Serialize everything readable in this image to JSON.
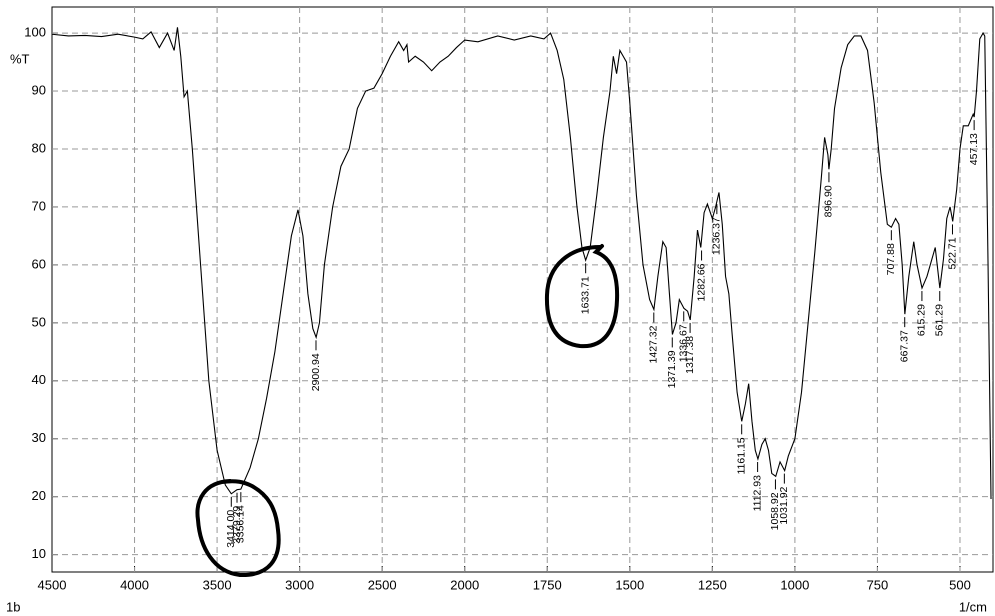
{
  "chart_data": {
    "type": "line",
    "y_label": "%T",
    "x_label": "1/cm",
    "sample": "1b",
    "color": "#000000",
    "xlim": [
      4500,
      400
    ],
    "x_scale_break": 2000,
    "ylim": [
      7,
      104.5
    ],
    "xticks": [
      4500,
      4000,
      3500,
      3000,
      2500,
      2000,
      1750,
      1500,
      1250,
      1000,
      750,
      500
    ],
    "yticks": [
      10,
      20,
      30,
      40,
      50,
      60,
      70,
      80,
      90,
      100
    ],
    "grid": true,
    "x": [
      4500,
      4400,
      4300,
      4200,
      4100,
      4000,
      3950,
      3900,
      3850,
      3800,
      3760,
      3740,
      3720,
      3700,
      3680,
      3650,
      3600,
      3550,
      3500,
      3450,
      3414,
      3379,
      3356,
      3300,
      3250,
      3200,
      3150,
      3100,
      3050,
      3010,
      2980,
      2950,
      2920,
      2900,
      2880,
      2850,
      2800,
      2750,
      2700,
      2650,
      2600,
      2550,
      2500,
      2450,
      2400,
      2370,
      2350,
      2340,
      2300,
      2250,
      2200,
      2150,
      2100,
      2050,
      2000,
      1960,
      1900,
      1850,
      1800,
      1760,
      1740,
      1720,
      1700,
      1680,
      1660,
      1645,
      1633.71,
      1620,
      1600,
      1580,
      1560,
      1550,
      1540,
      1530,
      1520,
      1510,
      1500,
      1480,
      1460,
      1440,
      1427,
      1415,
      1400,
      1390,
      1380,
      1371,
      1360,
      1350,
      1336,
      1325,
      1317,
      1305,
      1295,
      1285,
      1275,
      1265,
      1250,
      1240,
      1230,
      1220,
      1210,
      1200,
      1190,
      1175,
      1161,
      1150,
      1140,
      1130,
      1120,
      1112,
      1100,
      1090,
      1080,
      1070,
      1058,
      1045,
      1031,
      1020,
      1000,
      980,
      960,
      940,
      920,
      910,
      900,
      897,
      890,
      880,
      860,
      840,
      820,
      800,
      780,
      760,
      740,
      720,
      707.88,
      695,
      685,
      675,
      667,
      655,
      640,
      630,
      615,
      600,
      585,
      575,
      561,
      550,
      540,
      530,
      522,
      510,
      500,
      490,
      475,
      460,
      457,
      450,
      440,
      430,
      425,
      415,
      406
    ],
    "values": [
      99.8,
      99.5,
      99.6,
      99.4,
      99.8,
      99.3,
      99,
      100.2,
      97.5,
      100,
      97,
      101,
      96,
      89,
      90,
      80,
      60,
      40,
      28,
      22,
      20.5,
      21.2,
      21.3,
      25,
      30,
      37,
      45,
      55,
      65,
      69.5,
      65,
      55,
      49,
      47.5,
      50,
      60,
      70,
      77,
      80,
      87,
      90,
      90.5,
      93,
      96,
      98.5,
      97,
      98,
      95,
      96,
      95,
      93.5,
      95,
      96,
      97.5,
      98.8,
      98.5,
      99.5,
      98.8,
      99.5,
      99,
      100,
      97,
      92,
      82,
      70,
      63,
      60.8,
      63,
      72,
      82,
      90,
      96,
      93,
      97,
      96,
      95,
      88,
      72,
      60,
      54,
      52.3,
      58,
      64,
      63,
      55,
      48,
      50,
      54,
      52.5,
      52,
      50.5,
      58,
      66,
      63,
      69,
      70.5,
      68,
      70,
      72.5,
      67,
      58,
      55,
      48,
      38,
      33,
      36,
      39.5,
      33,
      28,
      26.5,
      29,
      30,
      28,
      24,
      23.5,
      26,
      24.5,
      27,
      30,
      38,
      50,
      62,
      75,
      82,
      79,
      76.5,
      80,
      87,
      94,
      98,
      99.5,
      99.5,
      97,
      88,
      76,
      67,
      66.5,
      68,
      67,
      60,
      51.5,
      58,
      64,
      60,
      56,
      58,
      61,
      63,
      56,
      61,
      68,
      70,
      67.5,
      73,
      80,
      84,
      84,
      86,
      85.5,
      90,
      99,
      100,
      99.5,
      60,
      19.6
    ],
    "peaks": [
      {
        "x": 3414.0,
        "label": "3414.00",
        "t": 20.5
      },
      {
        "x": 3379.29,
        "label": "3379.29",
        "t": 21.2
      },
      {
        "x": 3356.14,
        "label": "3356.14",
        "t": 21.3
      },
      {
        "x": 2900.94,
        "label": "2900.94",
        "t": 47.5
      },
      {
        "x": 1633.71,
        "label": "1633.71",
        "t": 60.8
      },
      {
        "x": 1427.32,
        "label": "1427.32",
        "t": 52.3
      },
      {
        "x": 1371.39,
        "label": "1371.39",
        "t": 48
      },
      {
        "x": 1336.67,
        "label": "1336.67",
        "t": 52.5
      },
      {
        "x": 1317.38,
        "label": "1317.38",
        "t": 50.5
      },
      {
        "x": 1282.66,
        "label": "1282.66",
        "t": 63
      },
      {
        "x": 1236.37,
        "label": "1236.37",
        "t": 71
      },
      {
        "x": 1161.15,
        "label": "1161.15",
        "t": 33
      },
      {
        "x": 1112.93,
        "label": "1112.93",
        "t": 26.5
      },
      {
        "x": 1058.92,
        "label": "1058.92",
        "t": 23.5
      },
      {
        "x": 1031.92,
        "label": "1031.92",
        "t": 24.5
      },
      {
        "x": 896.9,
        "label": "896.90",
        "t": 76.5
      },
      {
        "x": 707.88,
        "label": "707.88",
        "t": 66.5
      },
      {
        "x": 667.37,
        "label": "667.37",
        "t": 51.5
      },
      {
        "x": 615.29,
        "label": "615.29",
        "t": 56
      },
      {
        "x": 561.29,
        "label": "561.29",
        "t": 56
      },
      {
        "x": 522.71,
        "label": "522.71",
        "t": 67.5
      },
      {
        "x": 457.13,
        "label": "457.13",
        "t": 85.5
      }
    ]
  }
}
